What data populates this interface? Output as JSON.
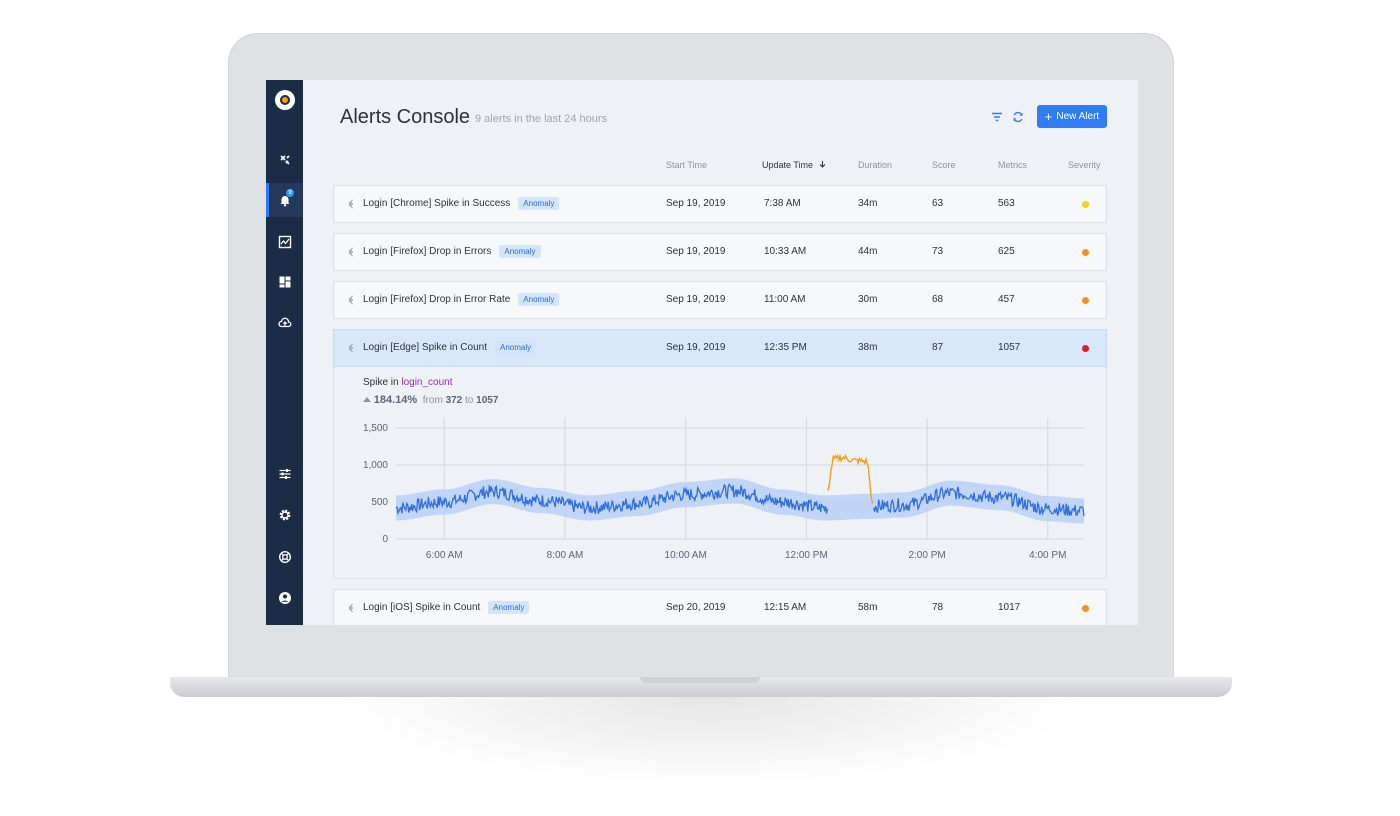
{
  "app": {
    "title": "Alerts Console",
    "subtitle": "9 alerts in the last 24 hours",
    "new_alert_label": "New Alert",
    "notification_count": "9"
  },
  "sidebar": {
    "items": [
      {
        "icon": "satellite-icon"
      },
      {
        "icon": "bell-icon",
        "active": true
      },
      {
        "icon": "activity-chart-icon"
      },
      {
        "icon": "dashboard-icon"
      },
      {
        "icon": "cloud-upload-icon"
      },
      {
        "icon": "sliders-icon"
      },
      {
        "icon": "gear-icon"
      },
      {
        "icon": "lifebuoy-icon"
      },
      {
        "icon": "user-icon"
      }
    ]
  },
  "columns": {
    "start_time": "Start Time",
    "update_time": "Update Time",
    "duration": "Duration",
    "score": "Score",
    "metrics": "Metrics",
    "severity": "Severity"
  },
  "alerts": [
    {
      "name": "Login [Chrome] Spike in Success",
      "tag": "Anomaly",
      "start": "Sep 19, 2019",
      "update": "7:38 AM",
      "duration": "34m",
      "score": "63",
      "metrics": "563",
      "severity_color": "#f2d21b"
    },
    {
      "name": "Login [Firefox] Drop in Errors",
      "tag": "Anomaly",
      "start": "Sep 19, 2019",
      "update": "10:33 AM",
      "duration": "44m",
      "score": "73",
      "metrics": "625",
      "severity_color": "#f5921e"
    },
    {
      "name": "Login [Firefox] Drop in Error Rate",
      "tag": "Anomaly",
      "start": "Sep 19, 2019",
      "update": "11:00 AM",
      "duration": "30m",
      "score": "68",
      "metrics": "457",
      "severity_color": "#f5921e"
    },
    {
      "name": "Login [Edge] Spike in Count",
      "tag": "Anomaly",
      "start": "Sep 19, 2019",
      "update": "12:35 PM",
      "duration": "38m",
      "score": "87",
      "metrics": "1057",
      "severity_color": "#e01b24"
    },
    {
      "name": "Login [iOS] Spike in Count",
      "tag": "Anomaly",
      "start": "Sep 20, 2019",
      "update": "12:15 AM",
      "duration": "58m",
      "score": "78",
      "metrics": "1017",
      "severity_color": "#f5921e"
    }
  ],
  "detail": {
    "spike_prefix": "Spike in",
    "metric_name": "login_count",
    "change_pct": "184.14%",
    "from_word": "from",
    "from_value": "372",
    "to_word": "to",
    "to_value": "1057"
  },
  "chart_data": {
    "type": "line",
    "x_tick_labels": [
      "6:00 AM",
      "8:00 AM",
      "10:00 AM",
      "12:00 PM",
      "2:00 PM",
      "4:00 PM"
    ],
    "x_range_hours": [
      5.2,
      16.6
    ],
    "y_ticks": [
      "0",
      "500",
      "1,000",
      "1,500"
    ],
    "ylim": [
      0,
      1500
    ],
    "grid": true,
    "series": [
      {
        "color": "#2f6fe0",
        "band_color": "#b9d0f6",
        "hours": [
          5.2,
          6.0,
          6.8,
          7.6,
          8.4,
          9.2,
          10.0,
          10.8,
          11.6,
          12.3,
          13.0,
          13.6,
          14.4,
          15.2,
          16.0,
          16.6
        ],
        "values": [
          420,
          500,
          640,
          520,
          420,
          480,
          600,
          650,
          500,
          420,
          440,
          460,
          620,
          560,
          410,
          380
        ]
      },
      {
        "color": "#f0a020",
        "hours": [
          12.35,
          12.45,
          12.6,
          12.8,
          13.0,
          13.1
        ],
        "values": [
          650,
          1080,
          1100,
          1060,
          1050,
          480
        ]
      }
    ]
  }
}
